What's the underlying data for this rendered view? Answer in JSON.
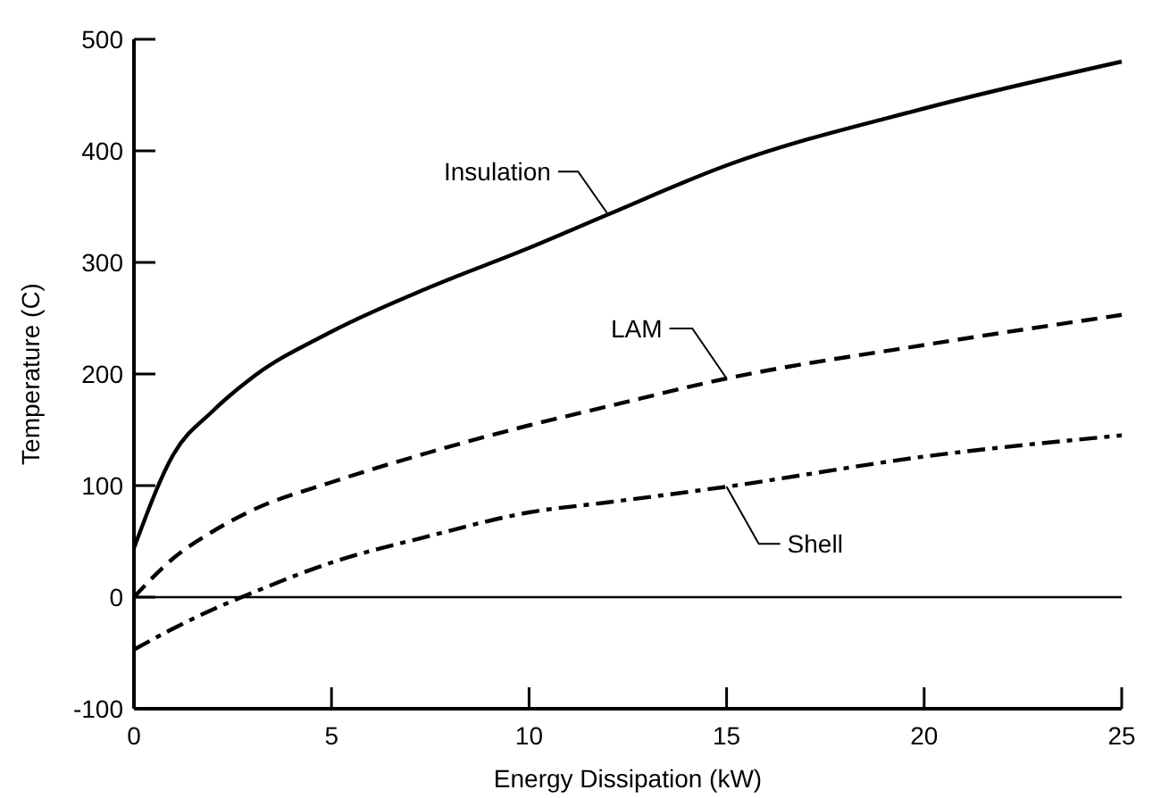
{
  "chart_data": {
    "type": "line",
    "xlabel": "Energy Dissipation (kW)",
    "ylabel": "Temperature (C)",
    "x": [
      0,
      1,
      2,
      3,
      5,
      7.5,
      10,
      12,
      15,
      20,
      25
    ],
    "series": [
      {
        "name": "Insulation",
        "color": "#000000",
        "line_style": "solid",
        "values": [
          44,
          128,
          167,
          197,
          238,
          278,
          313,
          343,
          387,
          438,
          480
        ]
      },
      {
        "name": "LAM",
        "color": "#000000",
        "line_style": "dashed",
        "values": [
          0,
          35,
          59,
          78,
          103,
          130,
          154,
          171,
          196,
          226,
          253
        ]
      },
      {
        "name": "Shell",
        "color": "#000000",
        "line_style": "dashdot",
        "values": [
          -47,
          -28,
          -11,
          4,
          31,
          55,
          76,
          85,
          99,
          126,
          145
        ]
      }
    ],
    "xlim": [
      0,
      25
    ],
    "xticks": [
      0,
      5,
      10,
      15,
      20,
      25
    ],
    "ylim": [
      -100,
      500
    ],
    "yticks": [
      -100,
      0,
      100,
      200,
      300,
      400,
      500
    ],
    "ref_lines": [
      {
        "axis": "y",
        "value": 0,
        "color": "#000000"
      }
    ],
    "grid": false,
    "marker": "none"
  }
}
